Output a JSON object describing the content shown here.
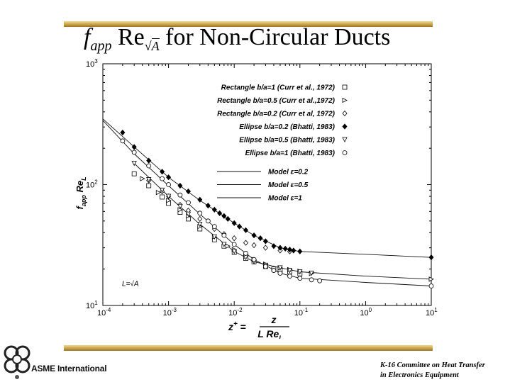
{
  "slide": {
    "title_f": "f",
    "title_sub": "app",
    "title_re": "Re",
    "title_sqrt_arg": "A",
    "title_rest": "for Non-Circular Ducts",
    "footer_line1": "K-16 Committee on Heat Transfer",
    "footer_line2": "in Electronics Equipment",
    "org_name": "ASME International"
  },
  "chart_data": {
    "type": "scatter",
    "x_scale": "log",
    "y_scale": "log",
    "xlim": [
      0.0001,
      10
    ],
    "ylim": [
      10,
      1000
    ],
    "x_ticks": [
      {
        "value": 0.0001,
        "base": "10",
        "exp": "-4"
      },
      {
        "value": 0.001,
        "base": "10",
        "exp": "-3"
      },
      {
        "value": 0.01,
        "base": "10",
        "exp": "-2"
      },
      {
        "value": 0.1,
        "base": "10",
        "exp": "-1"
      },
      {
        "value": 1,
        "base": "10",
        "exp": "0"
      },
      {
        "value": 10,
        "base": "10",
        "exp": "1"
      }
    ],
    "y_ticks": [
      {
        "value": 10,
        "base": "10",
        "exp": "1"
      },
      {
        "value": 100,
        "base": "10",
        "exp": "2"
      },
      {
        "value": 1000,
        "base": "10",
        "exp": "3"
      }
    ],
    "ylabel": {
      "f": "f",
      "sub": "app",
      "re": "Re",
      "resub": "L"
    },
    "xlabel": {
      "z": "z",
      "plus": "+",
      "eq": "=",
      "num": "z",
      "den": "L Re",
      "densub": "L"
    },
    "annotation": "L=√A",
    "series": [
      {
        "name": "Rectangle b/a=1 (Curr et al., 1972)",
        "marker": "square",
        "points": [
          [
            0.0003,
            123
          ],
          [
            0.0005,
            98
          ],
          [
            0.0008,
            79
          ],
          [
            0.001,
            70
          ],
          [
            0.0015,
            59
          ],
          [
            0.002,
            52
          ],
          [
            0.003,
            43
          ],
          [
            0.005,
            35
          ],
          [
            0.007,
            31
          ],
          [
            0.01,
            27.5
          ],
          [
            0.015,
            24.5
          ],
          [
            0.02,
            23
          ],
          [
            0.03,
            21
          ],
          [
            0.04,
            20
          ],
          [
            0.05,
            19.5
          ],
          [
            0.07,
            19
          ],
          [
            0.1,
            18.3
          ]
        ]
      },
      {
        "name": "Rectangle b/a=0.5 (Curr et al.,1972)",
        "marker": "triangle-right",
        "points": [
          [
            0.0004,
            112
          ],
          [
            0.0007,
            86
          ],
          [
            0.001,
            74
          ],
          [
            0.0015,
            62
          ],
          [
            0.002,
            55
          ],
          [
            0.003,
            45
          ],
          [
            0.005,
            37
          ],
          [
            0.008,
            31
          ],
          [
            0.01,
            29
          ],
          [
            0.015,
            25.5
          ],
          [
            0.02,
            24
          ],
          [
            0.03,
            22
          ],
          [
            0.05,
            20.5
          ],
          [
            0.07,
            19.8
          ],
          [
            0.1,
            19.2
          ],
          [
            0.15,
            18.4
          ],
          [
            10,
            16.5
          ]
        ]
      },
      {
        "name": "Rectangle b/a=0.2 (Curr et al, 1972)",
        "marker": "diamond",
        "points": [
          [
            0.0005,
            108
          ],
          [
            0.0008,
            88
          ],
          [
            0.001,
            80
          ],
          [
            0.0015,
            68
          ],
          [
            0.002,
            61
          ],
          [
            0.003,
            52
          ],
          [
            0.005,
            43
          ],
          [
            0.007,
            39
          ],
          [
            0.01,
            36
          ],
          [
            0.015,
            33
          ],
          [
            0.02,
            31.5
          ],
          [
            0.03,
            30
          ],
          [
            0.05,
            28.5
          ],
          [
            0.07,
            28
          ]
        ]
      },
      {
        "name": "Ellipse b/a=0.2 (Bhatti, 1983)",
        "marker": "diamond-filled",
        "points": [
          [
            0.0002,
            270
          ],
          [
            0.0003,
            205
          ],
          [
            0.0005,
            158
          ],
          [
            0.0008,
            128
          ],
          [
            0.001,
            115
          ],
          [
            0.0015,
            98
          ],
          [
            0.002,
            88
          ],
          [
            0.003,
            75
          ],
          [
            0.004,
            67
          ],
          [
            0.005,
            62
          ],
          [
            0.006,
            58
          ],
          [
            0.007,
            55
          ],
          [
            0.008,
            52
          ],
          [
            0.01,
            48
          ],
          [
            0.012,
            45
          ],
          [
            0.015,
            42
          ],
          [
            0.02,
            38
          ],
          [
            0.025,
            36
          ],
          [
            0.03,
            34
          ],
          [
            0.04,
            31
          ],
          [
            0.05,
            30
          ],
          [
            0.06,
            29.5
          ],
          [
            0.07,
            29
          ],
          [
            0.08,
            28.5
          ],
          [
            0.1,
            28
          ],
          [
            10,
            25
          ]
        ]
      },
      {
        "name": "Ellipse b/a=0.5 (Bhatti, 1983)",
        "marker": "triangle-down",
        "points": [
          [
            0.0003,
            150
          ],
          [
            0.0005,
            110
          ],
          [
            0.0008,
            90
          ],
          [
            0.001,
            80
          ],
          [
            0.0015,
            66
          ],
          [
            0.002,
            57
          ],
          [
            0.003,
            47
          ],
          [
            0.005,
            37
          ],
          [
            0.007,
            32
          ],
          [
            0.01,
            28
          ],
          [
            0.015,
            25
          ],
          [
            0.02,
            23
          ],
          [
            0.03,
            21.5
          ],
          [
            0.05,
            20.5
          ],
          [
            0.07,
            19.5
          ],
          [
            0.1,
            19
          ],
          [
            0.15,
            18.5
          ]
        ]
      },
      {
        "name": "Ellipse b/a=1 (Bhatti, 1983)",
        "marker": "circle",
        "points": [
          [
            0.0002,
            230
          ],
          [
            0.0003,
            185
          ],
          [
            0.0005,
            143
          ],
          [
            0.0008,
            112
          ],
          [
            0.001,
            100
          ],
          [
            0.0015,
            82
          ],
          [
            0.002,
            71
          ],
          [
            0.003,
            58
          ],
          [
            0.004,
            50
          ],
          [
            0.005,
            45
          ],
          [
            0.007,
            38
          ],
          [
            0.01,
            32
          ],
          [
            0.015,
            27
          ],
          [
            0.02,
            24
          ],
          [
            0.03,
            21
          ],
          [
            0.04,
            19.5
          ],
          [
            0.05,
            18.5
          ],
          [
            0.07,
            17.5
          ],
          [
            0.1,
            16.8
          ],
          [
            0.15,
            16.3
          ],
          [
            0.2,
            16
          ],
          [
            10,
            14.5
          ]
        ]
      }
    ],
    "model_lines": [
      {
        "name": "Model ε=0.2",
        "points": [
          [
            0.0001,
            350
          ],
          [
            0.0003,
            205
          ],
          [
            0.001,
            115
          ],
          [
            0.003,
            74
          ],
          [
            0.01,
            48
          ],
          [
            0.02,
            38
          ],
          [
            0.05,
            30
          ],
          [
            0.1,
            28
          ],
          [
            1,
            26.5
          ],
          [
            10,
            25
          ]
        ]
      },
      {
        "name": "Model ε=0.5",
        "points": [
          [
            0.0003,
            150
          ],
          [
            0.001,
            80
          ],
          [
            0.003,
            47
          ],
          [
            0.01,
            28
          ],
          [
            0.02,
            23
          ],
          [
            0.05,
            20.5
          ],
          [
            0.1,
            19
          ],
          [
            1,
            17.5
          ],
          [
            10,
            16.5
          ]
        ]
      },
      {
        "name": "Model ε=1",
        "points": [
          [
            0.0001,
            340
          ],
          [
            0.0003,
            180
          ],
          [
            0.001,
            98
          ],
          [
            0.003,
            57
          ],
          [
            0.01,
            32
          ],
          [
            0.02,
            24
          ],
          [
            0.05,
            18.5
          ],
          [
            0.1,
            16.8
          ],
          [
            1,
            15.5
          ],
          [
            10,
            14.5
          ]
        ]
      }
    ]
  }
}
